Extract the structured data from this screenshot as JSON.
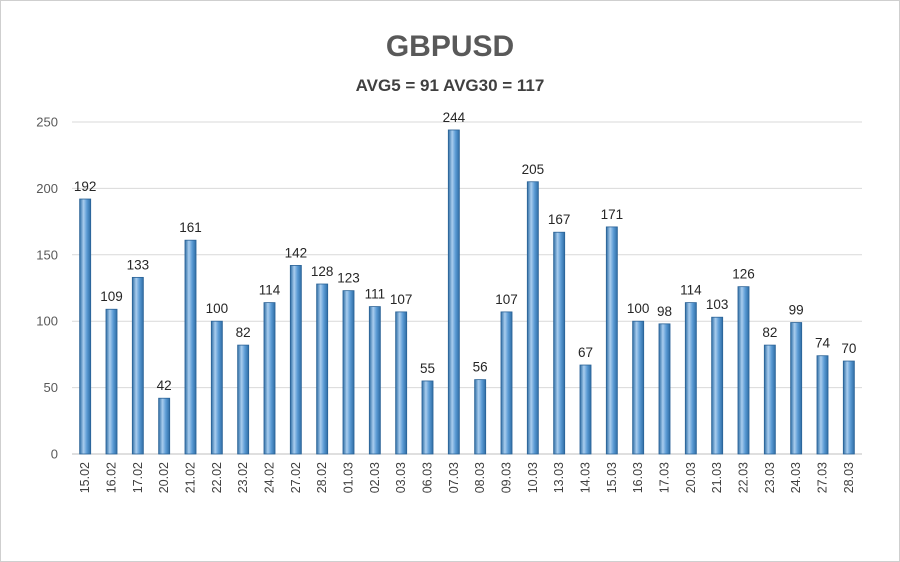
{
  "chart_data": {
    "type": "bar",
    "title": "GBPUSD",
    "subtitle": "AVG5 = 91 AVG30 = 117",
    "xlabel": "",
    "ylabel": "",
    "ylim": [
      0,
      250
    ],
    "yticks": [
      0,
      50,
      100,
      150,
      200,
      250
    ],
    "grid": true,
    "legend": "none",
    "colors": {
      "bar": "#5b9bd5",
      "bar_dark": "#2e6da4",
      "bar_light": "#a9cdee",
      "grid": "#d9d9d9"
    },
    "categories": [
      "15.02",
      "16.02",
      "17.02",
      "20.02",
      "21.02",
      "22.02",
      "23.02",
      "24.02",
      "27.02",
      "28.02",
      "01.03",
      "02.03",
      "03.03",
      "06.03",
      "07.03",
      "08.03",
      "09.03",
      "10.03",
      "13.03",
      "14.03",
      "15.03",
      "16.03",
      "17.03",
      "20.03",
      "21.03",
      "22.03",
      "23.03",
      "24.03",
      "27.03",
      "28.03"
    ],
    "values": [
      192,
      109,
      133,
      42,
      161,
      100,
      82,
      114,
      142,
      128,
      123,
      111,
      107,
      55,
      244,
      56,
      107,
      205,
      167,
      67,
      171,
      100,
      98,
      114,
      103,
      126,
      82,
      99,
      74,
      70
    ]
  }
}
